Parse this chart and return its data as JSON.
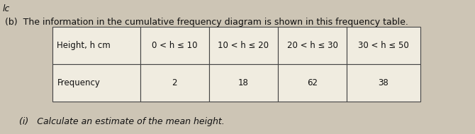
{
  "top_left_text": "lc",
  "part_b_text": "(b)  The information in the cumulative frequency diagram is shown in this frequency table.",
  "part_i_text": "(i)   Calculate an estimate of the mean height.",
  "row1_label": "Height, h cm",
  "row2_label": "Frequency",
  "col_headers": [
    "0 < h ≤ 10",
    "10 < h ≤ 20",
    "20 < h ≤ 30",
    "30 < h ≤ 50"
  ],
  "frequencies": [
    "2",
    "18",
    "62",
    "38"
  ],
  "bg_color": "#cdc5b5",
  "table_bg": "#f0ece0",
  "border_color": "#444444",
  "text_color": "#111111"
}
